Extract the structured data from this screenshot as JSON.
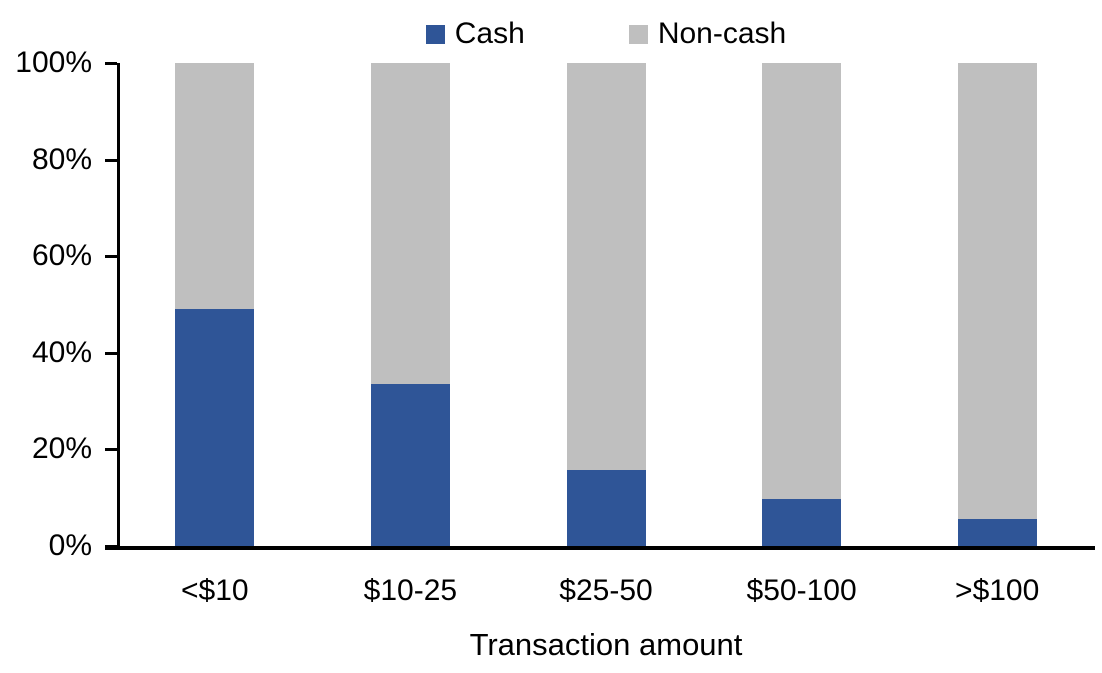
{
  "chart_data": {
    "type": "bar",
    "stacked": true,
    "title": "",
    "xlabel": "Transaction amount",
    "ylabel": "",
    "categories": [
      "<$10",
      "$10-25",
      "$25-50",
      "$50-100",
      ">$100"
    ],
    "series": [
      {
        "name": "Cash",
        "color": "#2F5597",
        "values": [
          49,
          33.5,
          15.7,
          9.7,
          5.6
        ]
      },
      {
        "name": "Non-cash",
        "color": "#BFBFBF",
        "values": [
          51,
          66.5,
          84.3,
          90.3,
          94.4
        ]
      }
    ],
    "ylim": [
      0,
      100
    ],
    "yticks": [
      "0%",
      "20%",
      "40%",
      "60%",
      "80%",
      "100%"
    ],
    "legend_position": "top",
    "grid": "off",
    "axis_color": "#000000"
  }
}
